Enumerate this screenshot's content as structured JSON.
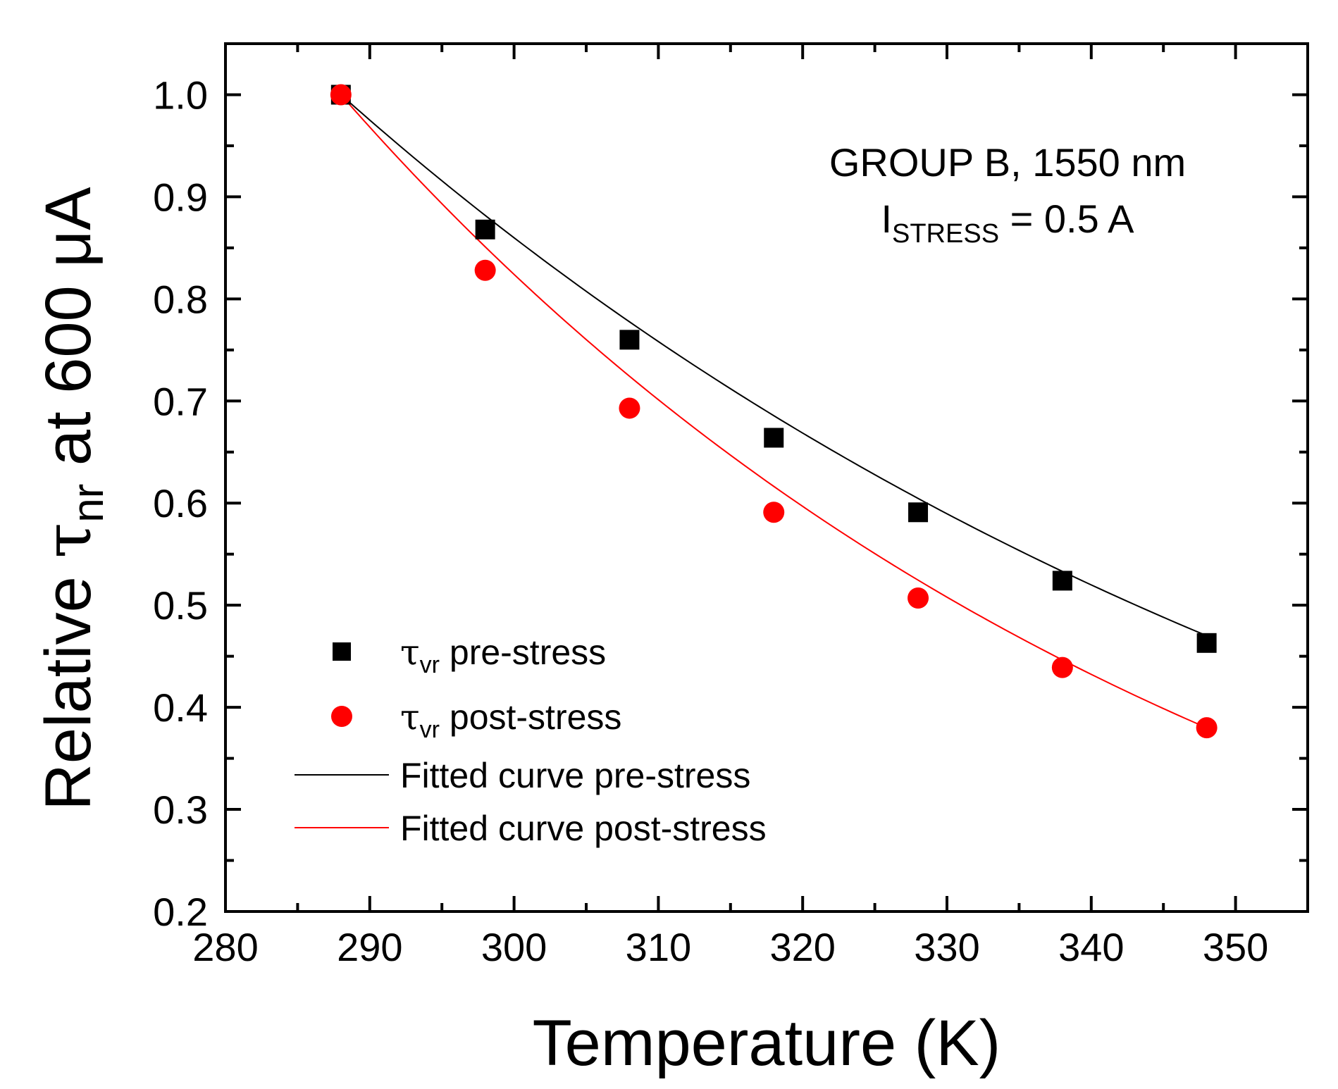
{
  "chart_data": {
    "type": "scatter",
    "xlabel": "Temperature (K)",
    "ylabel": {
      "prefix": "Relative ",
      "symbol": "τ",
      "subscript": "nr",
      "suffix": " at 600 μA"
    },
    "xlim": [
      280,
      355
    ],
    "ylim": [
      0.2,
      1.05
    ],
    "xticks": [
      "280",
      "290",
      "300",
      "310",
      "320",
      "330",
      "340",
      "350"
    ],
    "yticks": [
      "0.2",
      "0.3",
      "0.4",
      "0.5",
      "0.6",
      "0.7",
      "0.8",
      "0.9",
      "1.0"
    ],
    "annotation": {
      "line1": "GROUP B, 1550 nm",
      "line2_main": "I",
      "line2_sub": "STRESS",
      "line2_rest": " = 0.5 A"
    },
    "series": [
      {
        "name": "τvr pre-stress",
        "label_symbol": "τ",
        "label_sub": "vr",
        "label_rest": " pre-stress",
        "marker": "square",
        "color": "#000000",
        "x": [
          288,
          298,
          308,
          318,
          328,
          338,
          348
        ],
        "y": [
          1.0,
          0.868,
          0.76,
          0.664,
          0.591,
          0.524,
          0.463
        ]
      },
      {
        "name": "τvr post-stress",
        "label_symbol": "τ",
        "label_sub": "vr",
        "label_rest": " post-stress",
        "marker": "circle",
        "color": "#ff0000",
        "x": [
          288,
          298,
          308,
          318,
          328,
          338,
          348
        ],
        "y": [
          1.0,
          0.828,
          0.693,
          0.591,
          0.507,
          0.439,
          0.38
        ]
      }
    ],
    "fits": [
      {
        "name": "Fitted curve pre-stress",
        "color": "#000000",
        "model": "exponential",
        "a": 1.0,
        "k": 0.01258,
        "x0": 288,
        "x_range": [
          288,
          348
        ]
      },
      {
        "name": "Fitted curve post-stress",
        "color": "#ff0000",
        "model": "exponential",
        "a": 1.0,
        "k": 0.01613,
        "x0": 288,
        "x_range": [
          288,
          348
        ]
      }
    ],
    "legend_position": "lower-left"
  }
}
